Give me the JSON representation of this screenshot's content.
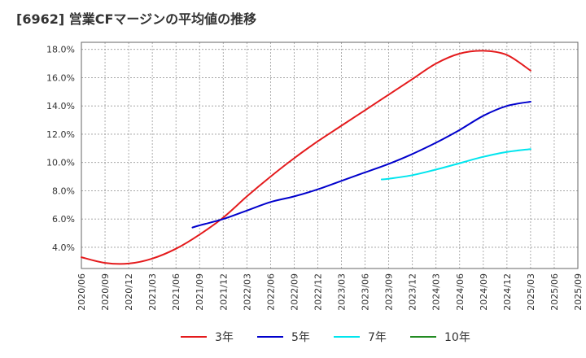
{
  "title": "[6962]  営業CFマージンの平均値の推移",
  "chart_data": {
    "type": "line",
    "title": "[6962]  営業CFマージンの平均値の推移",
    "xlabel": "",
    "ylabel": "",
    "ylim": [
      2.5,
      18.5
    ],
    "yticks": [
      4.0,
      6.0,
      8.0,
      10.0,
      12.0,
      14.0,
      16.0,
      18.0
    ],
    "ytick_labels": [
      "4.0%",
      "6.0%",
      "8.0%",
      "10.0%",
      "12.0%",
      "14.0%",
      "16.0%",
      "18.0%"
    ],
    "x_labels": [
      "2020/06",
      "2020/09",
      "2020/12",
      "2021/03",
      "2021/06",
      "2021/09",
      "2021/12",
      "2022/03",
      "2022/06",
      "2022/09",
      "2022/12",
      "2023/03",
      "2023/06",
      "2023/09",
      "2023/12",
      "2024/03",
      "2024/06",
      "2024/09",
      "2024/12",
      "2025/03",
      "2025/06",
      "2025/09"
    ],
    "grid": true,
    "legend_position": "bottom",
    "series": [
      {
        "name": "3年",
        "color": "#e41a1c",
        "x": [
          0,
          1,
          2,
          3,
          4,
          5,
          6,
          7,
          8,
          9,
          10,
          11,
          12,
          13,
          14,
          15,
          16,
          17,
          18,
          19
        ],
        "values": [
          3.3,
          2.9,
          2.85,
          3.2,
          3.9,
          4.9,
          6.1,
          7.6,
          9.0,
          10.3,
          11.5,
          12.6,
          13.7,
          14.8,
          15.9,
          17.0,
          17.7,
          17.9,
          17.6,
          16.5
        ]
      },
      {
        "name": "5年",
        "color": "#0000cc",
        "x": [
          4.7,
          5,
          6,
          7,
          8,
          9,
          10,
          11,
          12,
          13,
          14,
          15,
          16,
          17,
          18,
          19
        ],
        "values": [
          5.4,
          5.55,
          6.0,
          6.6,
          7.2,
          7.6,
          8.1,
          8.7,
          9.3,
          9.9,
          10.6,
          11.4,
          12.3,
          13.3,
          14.0,
          14.3
        ]
      },
      {
        "name": "7年",
        "color": "#00e5ee",
        "x": [
          12.7,
          13,
          14,
          15,
          16,
          17,
          18,
          19
        ],
        "values": [
          8.8,
          8.85,
          9.1,
          9.5,
          9.95,
          10.4,
          10.75,
          10.95
        ]
      },
      {
        "name": "10年",
        "color": "#228b22",
        "x": [],
        "values": []
      }
    ]
  }
}
